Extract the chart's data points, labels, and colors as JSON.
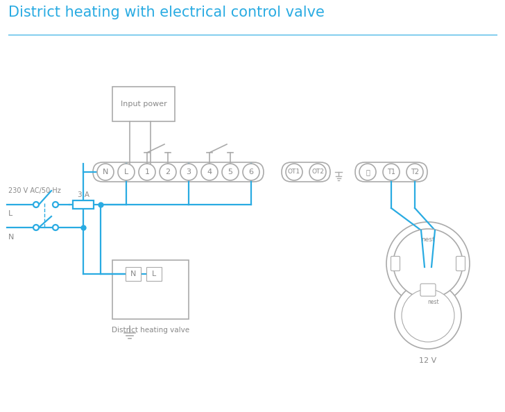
{
  "title": "District heating with electrical control valve",
  "title_color": "#29abe2",
  "title_fontsize": 15,
  "wire_color": "#29abe2",
  "outline_color": "#aaaaaa",
  "text_color": "#888888",
  "bg_color": "#ffffff",
  "terminal_labels": [
    "N",
    "L",
    "1",
    "2",
    "3",
    "4",
    "5",
    "6"
  ],
  "terminal_labels2": [
    "OT1",
    "OT2"
  ],
  "terminal_labels3": [
    "T1",
    "T2"
  ],
  "input_power_label": "Input power",
  "district_valve_label": "District heating valve",
  "voltage_label": "230 V AC/50 Hz",
  "fuse_label": "3 A",
  "L_label": "L",
  "N_label": "N",
  "nest_label": "12 V",
  "nest_text": "nest",
  "nest_text2": "nest"
}
